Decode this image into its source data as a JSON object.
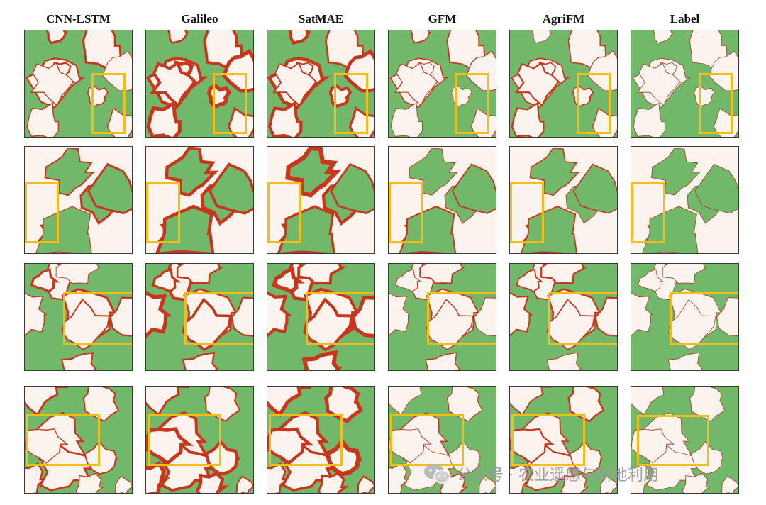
{
  "figure": {
    "columns": [
      "CNN-LSTM",
      "Galileo",
      "SatMAE",
      "GFM",
      "AgriFM",
      "Label"
    ],
    "rows": 4,
    "legend_colors": {
      "field": "#72b86a",
      "background": "#faf3ee",
      "error": "#c8361c",
      "highlight_box": "#f5bd17"
    }
  },
  "watermark": {
    "icon": "wechat-icon",
    "text": "公众号 · 农业遥感与耕地利用"
  }
}
